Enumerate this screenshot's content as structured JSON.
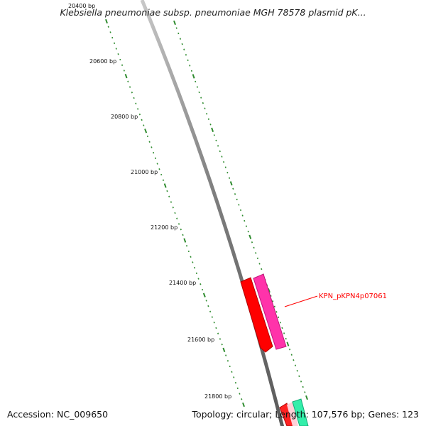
{
  "title": "Klebsiella pneumoniae subsp. pneumoniae MGH 78578 plasmid pK...",
  "accession": "Accession: NC_009650",
  "summary": "Topology: circular; Length: 107,576 bp; Genes: 123",
  "ruler": {
    "labels": [
      "20400 bp",
      "20600 bp",
      "20800 bp",
      "21000 bp",
      "21200 bp",
      "21400 bp",
      "21600 bp",
      "21800 bp"
    ],
    "tick_color": "#2e8b2e"
  },
  "backbone_color": "#7f7f7f",
  "genes": [
    {
      "name": "",
      "color": "#ff0000"
    },
    {
      "name": "KPN_pKPN4p07061",
      "color": "#ff33aa",
      "label_color": "#ff0000"
    },
    {
      "name": "",
      "color": "#ff2222"
    },
    {
      "name": "",
      "color": "#33eeaa"
    }
  ]
}
